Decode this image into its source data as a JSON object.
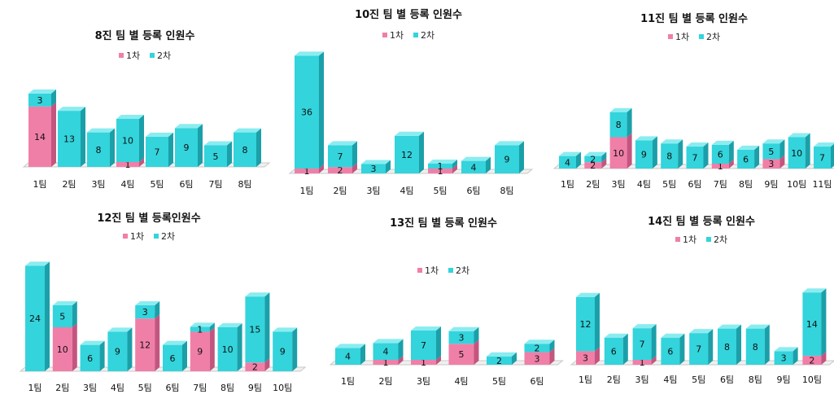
{
  "colors": {
    "s1": "#F07FA8",
    "s1_side": "#C4557F",
    "s1_top": "#F8A9C8",
    "s2": "#33D4DC",
    "s2_side": "#1B9FA8",
    "s2_top": "#8BECF0"
  },
  "chart_data": [
    {
      "type": "bar",
      "stacked": true,
      "title": "8진 팀 별 등록 인원수",
      "categories": [
        "1팀",
        "2팀",
        "3팀",
        "4팀",
        "5팀",
        "6팀",
        "7팀",
        "8팀"
      ],
      "series": [
        {
          "name": "1차",
          "values": [
            14,
            0,
            0,
            1,
            0,
            0,
            0,
            0
          ]
        },
        {
          "name": "2차",
          "values": [
            3,
            13,
            8,
            10,
            7,
            9,
            5,
            8
          ]
        }
      ],
      "legend": "top"
    },
    {
      "type": "bar",
      "stacked": true,
      "title": "10진 팀 별 등록 인원수",
      "categories": [
        "1팀",
        "2팀",
        "3팀",
        "4팀",
        "5팀",
        "6팀",
        "8팀"
      ],
      "series": [
        {
          "name": "1차",
          "values": [
            1,
            2,
            0,
            0,
            1,
            0,
            0
          ]
        },
        {
          "name": "2차",
          "values": [
            36,
            7,
            3,
            12,
            1,
            4,
            9
          ]
        }
      ],
      "legend": "top"
    },
    {
      "type": "bar",
      "stacked": true,
      "title": "11진 팀 별 등록 인원수",
      "categories": [
        "1팀",
        "2팀",
        "3팀",
        "4팀",
        "5팀",
        "6팀",
        "7팀",
        "8팀",
        "9팀",
        "10팀",
        "11팀"
      ],
      "series": [
        {
          "name": "1차",
          "values": [
            0,
            2,
            10,
            0,
            0,
            0,
            1,
            0,
            3,
            0,
            0
          ]
        },
        {
          "name": "2차",
          "values": [
            4,
            2,
            8,
            9,
            8,
            7,
            6,
            6,
            5,
            10,
            7
          ]
        }
      ],
      "legend": "top"
    },
    {
      "type": "bar",
      "stacked": true,
      "title": "12진 팀 별 등록인원수",
      "categories": [
        "1팀",
        "2팀",
        "3팀",
        "4팀",
        "5팀",
        "6팀",
        "7팀",
        "8팀",
        "9팀",
        "10팀"
      ],
      "series": [
        {
          "name": "1차",
          "values": [
            0,
            10,
            0,
            0,
            12,
            0,
            9,
            0,
            2,
            0
          ]
        },
        {
          "name": "2차",
          "values": [
            24,
            5,
            6,
            9,
            3,
            6,
            1,
            10,
            15,
            9
          ]
        }
      ],
      "legend": "top"
    },
    {
      "type": "bar",
      "stacked": true,
      "title": "13진 팀 별 등록 인원수",
      "categories": [
        "1팀",
        "2팀",
        "3팀",
        "4팀",
        "5팀",
        "6팀"
      ],
      "series": [
        {
          "name": "1차",
          "values": [
            0,
            1,
            1,
            5,
            0,
            3
          ]
        },
        {
          "name": "2차",
          "values": [
            4,
            4,
            7,
            3,
            2,
            2
          ]
        }
      ],
      "legend": "top"
    },
    {
      "type": "bar",
      "stacked": true,
      "title": "14진 팀 별 등록 인원수",
      "categories": [
        "1팀",
        "2팀",
        "3팀",
        "4팀",
        "5팀",
        "6팀",
        "8팀",
        "9팀",
        "10팀"
      ],
      "series": [
        {
          "name": "1차",
          "values": [
            3,
            0,
            1,
            0,
            0,
            0,
            0,
            0,
            2
          ]
        },
        {
          "name": "2차",
          "values": [
            12,
            6,
            7,
            6,
            7,
            8,
            8,
            3,
            14
          ]
        }
      ],
      "legend": "top"
    }
  ]
}
